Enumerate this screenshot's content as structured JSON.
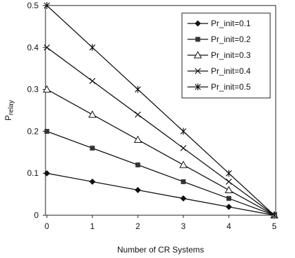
{
  "chart_data": {
    "type": "line",
    "xlabel": "Number of CR Systems",
    "ylabel": "Prelay",
    "ylabel_parts": {
      "main": "P",
      "sub": "relay"
    },
    "x": [
      0,
      1,
      2,
      3,
      4,
      5
    ],
    "xlim": [
      0,
      5
    ],
    "ylim": [
      0,
      0.5
    ],
    "xticks": [
      "0",
      "1",
      "2",
      "3",
      "4",
      "5"
    ],
    "yticks": [
      "0",
      "0.1",
      "0.2",
      "0.3",
      "0.4",
      "0.5"
    ],
    "grid": false,
    "legend_position": "top-right",
    "series": [
      {
        "name": "Pr_init=0.1",
        "marker": "diamond",
        "values": [
          0.1,
          0.08,
          0.06,
          0.04,
          0.02,
          0
        ]
      },
      {
        "name": "Pr_init=0.2",
        "marker": "square",
        "values": [
          0.2,
          0.16,
          0.12,
          0.08,
          0.04,
          0
        ]
      },
      {
        "name": "Pr_init=0.3",
        "marker": "triangle",
        "values": [
          0.3,
          0.24,
          0.18,
          0.12,
          0.06,
          0
        ]
      },
      {
        "name": "Pr_init=0.4",
        "marker": "x",
        "values": [
          0.4,
          0.32,
          0.24,
          0.16,
          0.08,
          0
        ]
      },
      {
        "name": "Pr_init=0.5",
        "marker": "asterisk",
        "values": [
          0.5,
          0.4,
          0.3,
          0.2,
          0.1,
          0
        ]
      }
    ]
  }
}
